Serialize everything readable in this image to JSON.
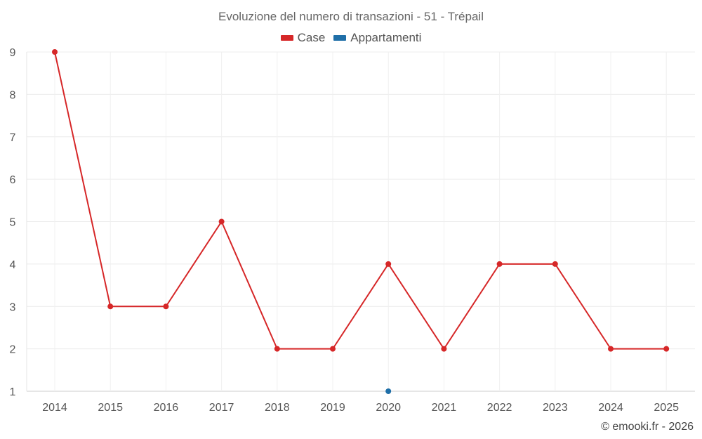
{
  "chart_data": {
    "type": "line",
    "title": "Evoluzione del numero di transazioni - 51 - Trépail",
    "xlabel": "",
    "ylabel": "",
    "categories": [
      "2014",
      "2015",
      "2016",
      "2017",
      "2018",
      "2019",
      "2020",
      "2021",
      "2022",
      "2023",
      "2024",
      "2025"
    ],
    "ylim": [
      1,
      9
    ],
    "yticks": [
      "1",
      "2",
      "3",
      "4",
      "5",
      "6",
      "7",
      "8",
      "9"
    ],
    "grid": true,
    "legend_position": "top-center",
    "series": [
      {
        "name": "Case",
        "color": "#d62728",
        "values": [
          9,
          3,
          3,
          5,
          2,
          2,
          4,
          2,
          4,
          4,
          2,
          2
        ]
      },
      {
        "name": "Appartamenti",
        "color": "#1f6fa8",
        "values": [
          null,
          null,
          null,
          null,
          null,
          null,
          1,
          null,
          null,
          null,
          null,
          null
        ]
      }
    ]
  },
  "credit": "© emooki.fr - 2026"
}
